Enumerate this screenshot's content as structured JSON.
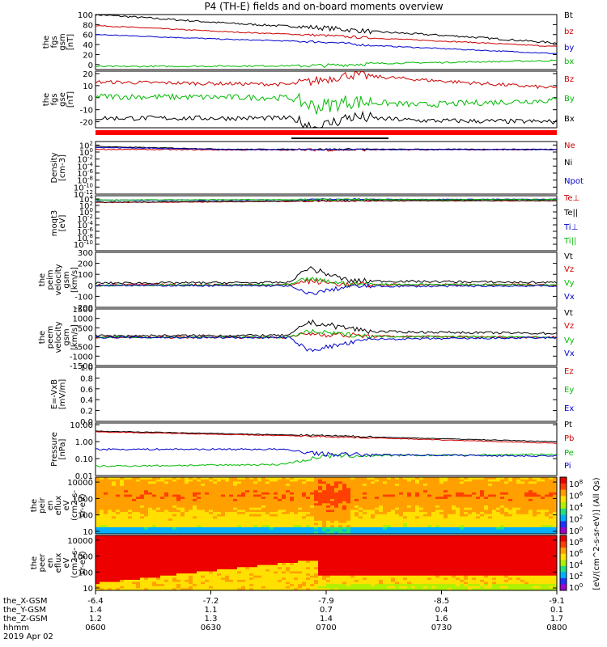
{
  "title": "P4 (TH-E) fields and on-board moments overview",
  "colors": {
    "black": "#000000",
    "red": "#cc0000",
    "green": "#00bb00",
    "blue": "#0000cc",
    "ef_bar": "#ff0000"
  },
  "chart_data": [
    {
      "type": "line",
      "panel": "fgs_gsm",
      "ylabel": [
        "the",
        "fgs",
        "gsm",
        "[nT]"
      ],
      "ylim": [
        -10,
        100
      ],
      "ticks": [
        "100",
        "80",
        "60",
        "40",
        "20",
        "0"
      ],
      "legend": [
        "Bt",
        "bz",
        "by",
        "bx"
      ],
      "series": [
        {
          "name": "Bt",
          "color": "black",
          "x": [
            0,
            0.3,
            0.5,
            0.6,
            0.8,
            1.0
          ],
          "y": [
            100,
            82,
            73,
            66,
            56,
            43
          ],
          "noise": 2
        },
        {
          "name": "bz",
          "color": "red",
          "x": [
            0,
            0.3,
            0.5,
            0.6,
            0.8,
            1.0
          ],
          "y": [
            78,
            65,
            58,
            53,
            45,
            36
          ],
          "noise": 1
        },
        {
          "name": "by",
          "color": "blue",
          "x": [
            0,
            0.3,
            0.5,
            0.6,
            0.8,
            1.0
          ],
          "y": [
            60,
            50,
            45,
            38,
            30,
            22
          ],
          "noise": 1
        },
        {
          "name": "bx",
          "color": "green",
          "x": [
            0,
            0.3,
            0.5,
            0.6,
            0.8,
            1.0
          ],
          "y": [
            -4,
            -3,
            -2,
            2,
            5,
            8
          ],
          "noise": 1.5
        }
      ]
    },
    {
      "type": "line",
      "panel": "fgs_gse",
      "ylabel": [
        "the",
        "fgs",
        "gse",
        "[nT]"
      ],
      "ylim": [
        -25,
        22
      ],
      "ticks": [
        "20",
        "10",
        "0",
        "-10",
        "-20"
      ],
      "legend": [
        "Bz",
        "By",
        "Bx"
      ],
      "series": [
        {
          "name": "Bz",
          "color": "red",
          "x": [
            0,
            0.42,
            0.48,
            0.55,
            0.7,
            1.0
          ],
          "y": [
            13,
            11,
            14,
            19,
            15,
            8
          ],
          "noise": 1.5
        },
        {
          "name": "By",
          "color": "green",
          "x": [
            0,
            0.42,
            0.48,
            0.55,
            0.7,
            1.0
          ],
          "y": [
            1,
            0,
            -8,
            -3,
            -6,
            -2
          ],
          "noise": 2.5
        },
        {
          "name": "Bx",
          "color": "black",
          "x": [
            0,
            0.42,
            0.48,
            0.55,
            0.7,
            1.0
          ],
          "y": [
            -17,
            -17,
            -25,
            -16,
            -19,
            -20
          ],
          "noise": 2
        }
      ]
    },
    {
      "type": "line",
      "panel": "density",
      "ylabel": [
        "Density",
        "[cm-3]"
      ],
      "ylog": true,
      "ylim": [
        -12,
        3
      ],
      "ticks": [
        "10^2",
        "10^0",
        "10^-2",
        "10^-4",
        "10^-6",
        "10^-8",
        "10^-10",
        "10^-12"
      ],
      "legend": [
        "Ne",
        "Ni",
        "Npot"
      ],
      "series": [
        {
          "name": "Ne",
          "color": "red",
          "x": [
            0,
            0.3,
            1.0
          ],
          "y": [
            0.8,
            0.6,
            0.7
          ],
          "noise": 0.15
        },
        {
          "name": "Ni",
          "color": "black",
          "x": [
            0,
            0.1,
            0.3,
            1.0
          ],
          "y": [
            1.6,
            1.3,
            0.8,
            0.8
          ],
          "noise": 0.1
        },
        {
          "name": "Npot",
          "color": "blue",
          "x": [
            0,
            0.12,
            0.3,
            1.0
          ],
          "y": [
            1.3,
            1.1,
            0.7,
            0.7
          ],
          "noise": 0.1
        }
      ]
    },
    {
      "type": "line",
      "panel": "temperature",
      "ylabel": [
        "moqt3",
        "[eV]"
      ],
      "ylog": true,
      "ylim": [
        -12,
        5
      ],
      "ticks": [
        "10^4",
        "10^2",
        "10^0",
        "10^-2",
        "10^-4",
        "10^-6",
        "10^-8",
        "10^-10"
      ],
      "legend": [
        "Te⊥",
        "Te||",
        "Ti⊥",
        "Ti||"
      ],
      "series": [
        {
          "name": "Te⊥",
          "color": "red",
          "x": [
            0,
            0.4,
            0.5,
            1.0
          ],
          "y": [
            2.9,
            3.2,
            3.4,
            3.4
          ],
          "noise": 0.1
        },
        {
          "name": "Te||",
          "color": "black",
          "x": [
            0,
            0.4,
            0.5,
            1.0
          ],
          "y": [
            3.0,
            3.3,
            3.5,
            3.5
          ],
          "noise": 0.1
        },
        {
          "name": "Ti⊥",
          "color": "blue",
          "x": [
            0,
            0.4,
            0.5,
            1.0
          ],
          "y": [
            3.6,
            3.7,
            3.9,
            3.9
          ],
          "noise": 0.1
        },
        {
          "name": "Ti||",
          "color": "green",
          "x": [
            0,
            0.4,
            0.5,
            1.0
          ],
          "y": [
            3.7,
            3.8,
            3.8,
            3.8
          ],
          "noise": 0.1
        }
      ]
    },
    {
      "type": "line",
      "panel": "peim_velocity",
      "ylabel": [
        "the",
        "peim",
        "velocity",
        "gsm",
        "[km/s]"
      ],
      "ylim": [
        -200,
        300
      ],
      "ticks": [
        "300",
        "200",
        "100",
        "0",
        "-100",
        "-200"
      ],
      "legend": [
        "Vt",
        "Vz",
        "Vy",
        "Vx"
      ],
      "series": [
        {
          "name": "Vt",
          "color": "black",
          "x": [
            0,
            0.42,
            0.46,
            0.55,
            1.0
          ],
          "y": [
            20,
            25,
            160,
            40,
            25
          ],
          "noise": 10
        },
        {
          "name": "Vz",
          "color": "red",
          "x": [
            0,
            0.42,
            0.46,
            0.55,
            1.0
          ],
          "y": [
            5,
            5,
            40,
            5,
            5
          ],
          "noise": 10
        },
        {
          "name": "Vy",
          "color": "green",
          "x": [
            0,
            0.42,
            0.46,
            0.55,
            1.0
          ],
          "y": [
            0,
            5,
            60,
            10,
            5
          ],
          "noise": 8
        },
        {
          "name": "Vx",
          "color": "blue",
          "x": [
            0,
            0.42,
            0.46,
            0.55,
            1.0
          ],
          "y": [
            0,
            -5,
            -80,
            -10,
            -5
          ],
          "noise": 8
        }
      ]
    },
    {
      "type": "line",
      "panel": "peem_velocity",
      "ylabel": [
        "the",
        "peem",
        "velocity",
        "gsm",
        "[km/s]"
      ],
      "ylim": [
        -1500,
        1500
      ],
      "ticks": [
        "1500",
        "1000",
        "500",
        "0",
        "-500",
        "-1000",
        "-1500"
      ],
      "legend": [
        "Vt",
        "Vz",
        "Vy",
        "Vx"
      ],
      "series": [
        {
          "name": "Vt",
          "color": "black",
          "x": [
            0,
            0.42,
            0.46,
            0.6,
            1.0
          ],
          "y": [
            80,
            100,
            800,
            300,
            200
          ],
          "noise": 60
        },
        {
          "name": "Vz",
          "color": "red",
          "x": [
            0,
            0.42,
            0.46,
            0.6,
            1.0
          ],
          "y": [
            0,
            0,
            200,
            50,
            0
          ],
          "noise": 60
        },
        {
          "name": "Vy",
          "color": "green",
          "x": [
            0,
            0.42,
            0.46,
            0.6,
            1.0
          ],
          "y": [
            0,
            0,
            300,
            50,
            0
          ],
          "noise": 50
        },
        {
          "name": "Vx",
          "color": "blue",
          "x": [
            0,
            0.42,
            0.46,
            0.6,
            1.0
          ],
          "y": [
            -10,
            -20,
            -700,
            -100,
            -30
          ],
          "noise": 50
        }
      ]
    },
    {
      "type": "line",
      "panel": "efield",
      "ylabel": [
        "E=-VxB",
        "[mV/m]"
      ],
      "ylim": [
        0,
        1
      ],
      "ticks": [
        "1.0",
        "0.8",
        "0.6",
        "0.4",
        "0.2",
        "0.0"
      ],
      "legend": [
        "Ez",
        "Ey",
        "Ex"
      ],
      "series": []
    },
    {
      "type": "line",
      "panel": "pressure",
      "ylabel": [
        "Pressure",
        "[nPa]"
      ],
      "ylog": true,
      "ylim": [
        -2,
        1.1
      ],
      "ticks": [
        "10.00",
        "1.00",
        "0.10",
        "0.01"
      ],
      "legend": [
        "Pt",
        "Pb",
        "Pe",
        "Pi"
      ],
      "series": [
        {
          "name": "Pt",
          "color": "black",
          "x": [
            0,
            0.5,
            1.0
          ],
          "y": [
            0.62,
            0.35,
            0.0
          ],
          "noise": 0.02
        },
        {
          "name": "Pb",
          "color": "red",
          "x": [
            0,
            0.5,
            1.0
          ],
          "y": [
            0.58,
            0.3,
            -0.1
          ],
          "noise": 0.02
        },
        {
          "name": "Pe",
          "color": "green",
          "x": [
            0,
            0.4,
            0.5,
            1.0
          ],
          "y": [
            -1.45,
            -1.35,
            -0.85,
            -0.75
          ],
          "noise": 0.05
        },
        {
          "name": "Pi",
          "color": "blue",
          "x": [
            0,
            0.4,
            0.5,
            1.0
          ],
          "y": [
            -0.45,
            -0.45,
            -0.75,
            -0.85
          ],
          "noise": 0.05
        }
      ]
    },
    {
      "type": "heatmap",
      "panel": "peir_spectrogram",
      "ylabel": [
        "the",
        "peir",
        "en",
        "eflux",
        "eV",
        "(cm2-s-",
        "sr-eV)"
      ],
      "ylog": true,
      "ylim": [
        0.85,
        4.3
      ],
      "ticks": [
        "10000",
        "1000",
        "100",
        "10"
      ],
      "colorbar_ticks": [
        "10^8",
        "10^6",
        "10^4",
        "10^2",
        "10^0"
      ]
    },
    {
      "type": "heatmap",
      "panel": "peer_spectrogram",
      "ylabel": [
        "the",
        "peer",
        "en",
        "eflux",
        "eV",
        "(cm2-s-",
        "sr-eV)"
      ],
      "ylog": true,
      "ylim": [
        0.85,
        4.3
      ],
      "ticks": [
        "10000",
        "1000",
        "100",
        "10"
      ],
      "colorbar_ticks": [
        "10^8",
        "10^6",
        "10^4",
        "10^2",
        "10^0"
      ]
    }
  ],
  "colorbar_label": "[eV/(cm^2-s-sr-eV)] (All Qs)",
  "axis_rows": [
    {
      "label": "the_X-GSM",
      "values": [
        "-6.4",
        "-7.2",
        "-7.9",
        "-8.5",
        "-9.1"
      ]
    },
    {
      "label": "the_Y-GSM",
      "values": [
        "1.4",
        "1.1",
        "0.7",
        "0.4",
        "0.1"
      ]
    },
    {
      "label": "the_Z-GSM",
      "values": [
        "1.2",
        "1.3",
        "1.4",
        "1.6",
        "1.7"
      ]
    },
    {
      "label": "hhmm",
      "values": [
        "0600",
        "0630",
        "0700",
        "0730",
        "0800"
      ]
    }
  ],
  "date_label": "2019 Apr 02"
}
